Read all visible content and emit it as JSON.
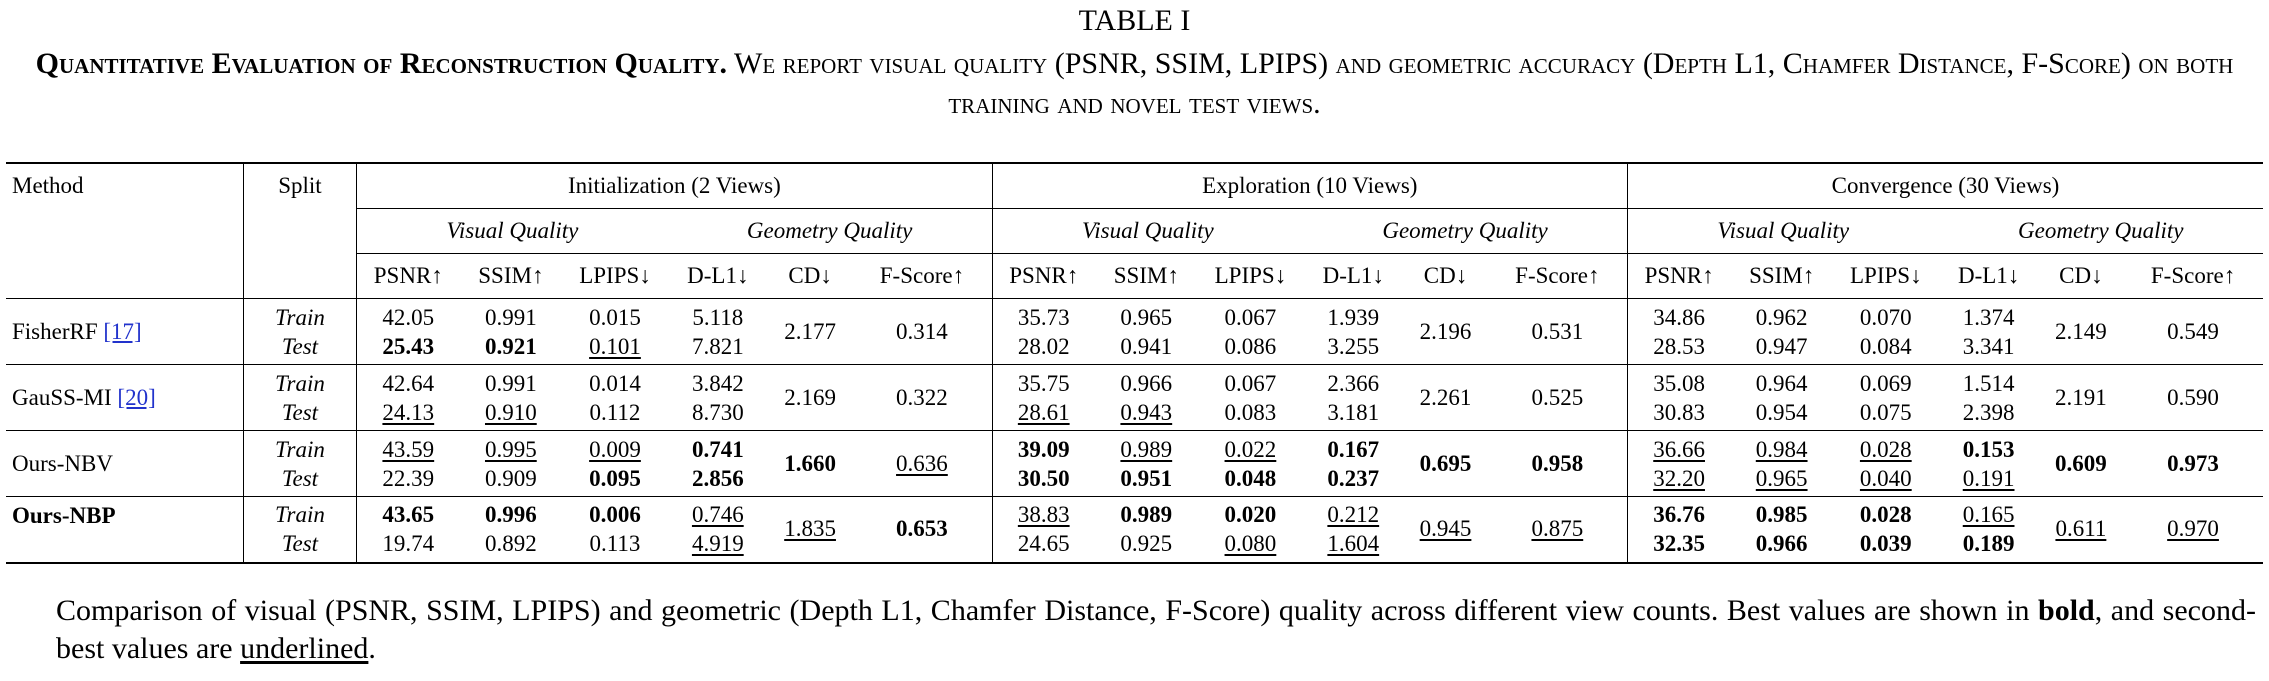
{
  "caption": {
    "label": "TABLE I",
    "title_bold": "Quantitative Evaluation of Reconstruction Quality.",
    "title_rest": " We report visual quality (PSNR, SSIM, LPIPS) and geometric accuracy (Depth L1, Chamfer Distance, F-Score) on both training and novel test views."
  },
  "header": {
    "method": "Method",
    "split": "Split",
    "groups": [
      "Initialization (2 Views)",
      "Exploration (10 Views)",
      "Convergence (30 Views)"
    ],
    "visual": "Visual Quality",
    "geometry": "Geometry Quality",
    "metrics": [
      "PSNR↑",
      "SSIM↑",
      "LPIPS↓",
      "D-L1↓",
      "CD↓",
      "F-Score↑"
    ]
  },
  "splits": [
    "Train",
    "Test"
  ],
  "rows": [
    {
      "method": "FisherRF ",
      "cite": "[17]",
      "bold_method": false,
      "groups": [
        {
          "psnr": [
            "42.05",
            "25.43"
          ],
          "ssim": [
            "0.991",
            "0.921"
          ],
          "lpips": [
            "0.015",
            "0.101"
          ],
          "dl1": [
            "5.118",
            "7.821"
          ],
          "cd": "2.177",
          "f": "0.314"
        },
        {
          "psnr": [
            "35.73",
            "28.02"
          ],
          "ssim": [
            "0.965",
            "0.941"
          ],
          "lpips": [
            "0.067",
            "0.086"
          ],
          "dl1": [
            "1.939",
            "3.255"
          ],
          "cd": "2.196",
          "f": "0.531"
        },
        {
          "psnr": [
            "34.86",
            "28.53"
          ],
          "ssim": [
            "0.962",
            "0.947"
          ],
          "lpips": [
            "0.070",
            "0.084"
          ],
          "dl1": [
            "1.374",
            "3.341"
          ],
          "cd": "2.149",
          "f": "0.549"
        }
      ]
    },
    {
      "method": "GauSS-MI ",
      "cite": "[20]",
      "bold_method": false,
      "groups": [
        {
          "psnr": [
            "42.64",
            "24.13"
          ],
          "ssim": [
            "0.991",
            "0.910"
          ],
          "lpips": [
            "0.014",
            "0.112"
          ],
          "dl1": [
            "3.842",
            "8.730"
          ],
          "cd": "2.169",
          "f": "0.322"
        },
        {
          "psnr": [
            "35.75",
            "28.61"
          ],
          "ssim": [
            "0.966",
            "0.943"
          ],
          "lpips": [
            "0.067",
            "0.083"
          ],
          "dl1": [
            "2.366",
            "3.181"
          ],
          "cd": "2.261",
          "f": "0.525"
        },
        {
          "psnr": [
            "35.08",
            "30.83"
          ],
          "ssim": [
            "0.964",
            "0.954"
          ],
          "lpips": [
            "0.069",
            "0.075"
          ],
          "dl1": [
            "1.514",
            "2.398"
          ],
          "cd": "2.191",
          "f": "0.590"
        }
      ]
    },
    {
      "method": "Ours-NBV",
      "cite": "",
      "bold_method": false,
      "groups": [
        {
          "psnr": [
            "43.59",
            "22.39"
          ],
          "ssim": [
            "0.995",
            "0.909"
          ],
          "lpips": [
            "0.009",
            "0.095"
          ],
          "dl1": [
            "0.741",
            "2.856"
          ],
          "cd": "1.660",
          "f": "0.636"
        },
        {
          "psnr": [
            "39.09",
            "30.50"
          ],
          "ssim": [
            "0.989",
            "0.951"
          ],
          "lpips": [
            "0.022",
            "0.048"
          ],
          "dl1": [
            "0.167",
            "0.237"
          ],
          "cd": "0.695",
          "f": "0.958"
        },
        {
          "psnr": [
            "36.66",
            "32.20"
          ],
          "ssim": [
            "0.984",
            "0.965"
          ],
          "lpips": [
            "0.028",
            "0.040"
          ],
          "dl1": [
            "0.153",
            "0.191"
          ],
          "cd": "0.609",
          "f": "0.973"
        }
      ]
    },
    {
      "method": "Ours-NBP",
      "cite": "",
      "bold_method": true,
      "groups": [
        {
          "psnr": [
            "43.65",
            "19.74"
          ],
          "ssim": [
            "0.996",
            "0.892"
          ],
          "lpips": [
            "0.006",
            "0.113"
          ],
          "dl1": [
            "0.746",
            "4.919"
          ],
          "cd": "1.835",
          "f": "0.653"
        },
        {
          "psnr": [
            "38.83",
            "24.65"
          ],
          "ssim": [
            "0.989",
            "0.925"
          ],
          "lpips": [
            "0.020",
            "0.080"
          ],
          "dl1": [
            "0.212",
            "1.604"
          ],
          "cd": "0.945",
          "f": "0.875"
        },
        {
          "psnr": [
            "36.76",
            "32.35"
          ],
          "ssim": [
            "0.985",
            "0.966"
          ],
          "lpips": [
            "0.028",
            "0.039"
          ],
          "dl1": [
            "0.165",
            "0.189"
          ],
          "cd": "0.611",
          "f": "0.970"
        }
      ]
    }
  ],
  "note": {
    "part1": "Comparison of visual (PSNR, SSIM, LPIPS) and geometric (Depth L1, Chamfer Distance, F-Score) quality across different view counts. Best values are shown in ",
    "bold_word": "bold",
    "part2": ", and second-best values are ",
    "underline_word": "underlined",
    "part3": "."
  }
}
